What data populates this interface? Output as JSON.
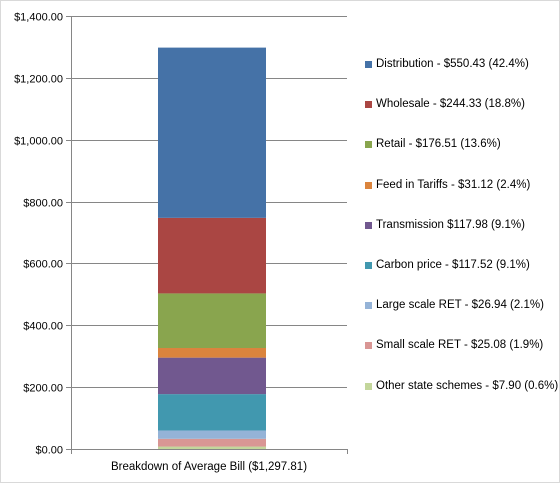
{
  "chart_data": {
    "type": "bar",
    "stacked": true,
    "title": "",
    "xlabel": "",
    "ylabel": "",
    "categories": [
      "Breakdown of Average Bill ($1,297.81)"
    ],
    "series": [
      {
        "name": "Other state schemes - $7.90 (0.6%)",
        "values": [
          7.9
        ],
        "color": "#c3d69b"
      },
      {
        "name": "Small scale RET - $25.08 (1.9%)",
        "values": [
          25.08
        ],
        "color": "#d99694"
      },
      {
        "name": "Large scale RET - $26.94 (2.1%)",
        "values": [
          26.94
        ],
        "color": "#95b3d7"
      },
      {
        "name": "Carbon price - $117.52 (9.1%)",
        "values": [
          117.52
        ],
        "color": "#4198af"
      },
      {
        "name": "Transmission $117.98 (9.1%)",
        "values": [
          117.98
        ],
        "color": "#71588f"
      },
      {
        "name": "Feed in Tariffs - $31.12 (2.4%)",
        "values": [
          31.12
        ],
        "color": "#db843d"
      },
      {
        "name": "Retail - $176.51 (13.6%)",
        "values": [
          176.51
        ],
        "color": "#89a54e"
      },
      {
        "name": "Wholesale - $244.33 (18.8%)",
        "values": [
          244.33
        ],
        "color": "#aa4643"
      },
      {
        "name": "Distribution - $550.43 (42.4%)",
        "values": [
          550.43
        ],
        "color": "#4572a7"
      }
    ],
    "yticks": [
      "$0.00",
      "$200.00",
      "$400.00",
      "$600.00",
      "$800.00",
      "$1,000.00",
      "$1,200.00",
      "$1,400.00"
    ],
    "ylim": [
      0,
      1400
    ],
    "ystep": 200,
    "grid": true,
    "legend_position": "right"
  }
}
